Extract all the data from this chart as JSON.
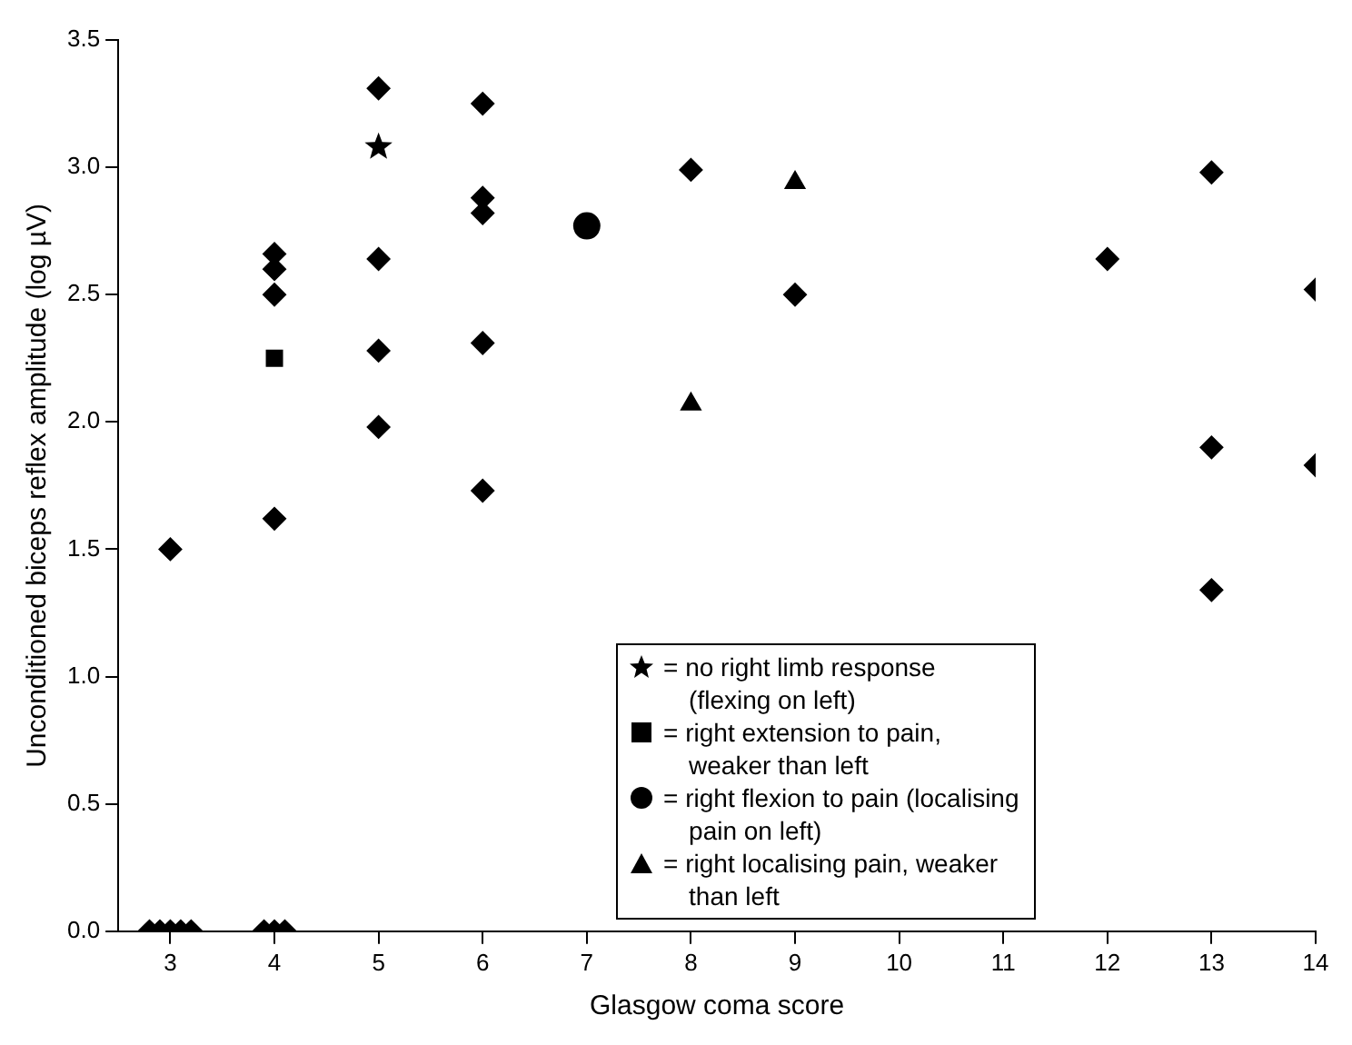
{
  "chart_data": {
    "type": "scatter",
    "xlabel": "Glasgow coma score",
    "ylabel": "Unconditioned biceps reflex amplitude (log µV)",
    "xlim": [
      2.5,
      14
    ],
    "xticks": [
      3,
      4,
      5,
      6,
      7,
      8,
      9,
      10,
      11,
      12,
      13,
      14
    ],
    "ylim": [
      0,
      3.5
    ],
    "yticks": [
      {
        "value": 0,
        "label": "0.0"
      },
      {
        "value": 0.5,
        "label": "0.5"
      },
      {
        "value": 1,
        "label": "1.0"
      },
      {
        "value": 1.5,
        "label": "1.5"
      },
      {
        "value": 2,
        "label": "2.0"
      },
      {
        "value": 2.5,
        "label": "2.5"
      },
      {
        "value": 3,
        "label": "3.0"
      },
      {
        "value": 3.5,
        "label": "3.5"
      }
    ],
    "grid": false,
    "legend": "bottom",
    "series": [
      {
        "color": "#000000",
        "marker": "diamond",
        "x": [
          2.8,
          2.9,
          3.0,
          3.1,
          3.2,
          3,
          3.9,
          4.0,
          4.1,
          4,
          4,
          4,
          4,
          5,
          5,
          5,
          5,
          6,
          6,
          6,
          6,
          6,
          8,
          9,
          12,
          13,
          13,
          13,
          14,
          14
        ],
        "values": [
          0,
          0,
          0,
          0,
          0,
          1.5,
          0,
          0,
          0,
          2.66,
          2.6,
          2.5,
          1.62,
          3.31,
          2.64,
          2.28,
          1.98,
          3.25,
          2.88,
          2.82,
          2.31,
          1.73,
          2.99,
          2.5,
          2.64,
          2.98,
          1.9,
          1.34,
          2.52,
          1.83
        ]
      },
      {
        "name": "= no right limb response (flexing on left)",
        "color": "#000000",
        "marker": "star",
        "x": [
          5
        ],
        "values": [
          3.08
        ]
      },
      {
        "name": "= right extension to pain, weaker than left",
        "color": "#000000",
        "marker": "square",
        "x": [
          4
        ],
        "values": [
          2.25
        ]
      },
      {
        "name": "= right flexion to pain (localising pain on left)",
        "color": "#000000",
        "marker": "circle",
        "x": [
          7
        ],
        "values": [
          2.77
        ]
      },
      {
        "name": "= right localising pain, weaker than left",
        "color": "#000000",
        "marker": "triangle",
        "x": [
          9,
          8
        ],
        "values": [
          2.94,
          2.07
        ]
      }
    ]
  }
}
